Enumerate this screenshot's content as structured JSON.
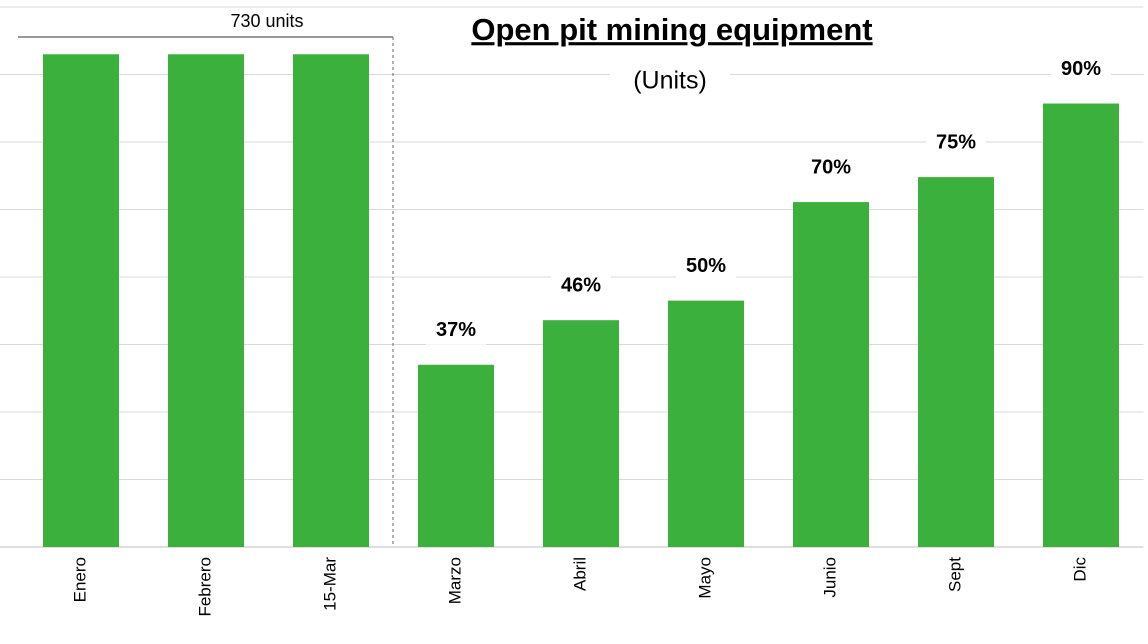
{
  "chart_data": {
    "type": "bar",
    "title": "Open pit mining equipment",
    "subtitle": "(Units)",
    "annotation": "730 units",
    "categories": [
      "Enero",
      "Febrero",
      "15-Mar",
      "Marzo",
      "Abril",
      "Mayo",
      "Junio",
      "Sept",
      "Dic"
    ],
    "values": [
      730,
      730,
      730,
      270,
      336,
      365,
      511,
      548,
      657
    ],
    "value_labels": [
      null,
      null,
      null,
      "37%",
      "46%",
      "50%",
      "70%",
      "75%",
      "90%"
    ],
    "color": "#3cb03c",
    "ylim": [
      0,
      800
    ],
    "yticks": [
      0,
      100,
      200,
      300,
      400,
      500,
      600,
      700,
      800
    ],
    "grid": true
  }
}
